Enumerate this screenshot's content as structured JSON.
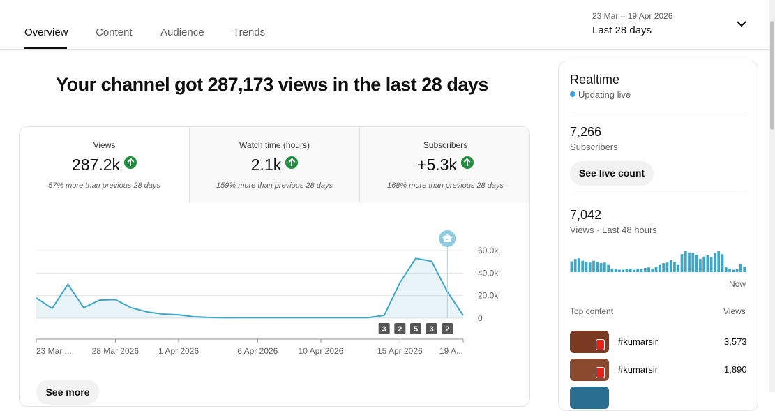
{
  "tabs": [
    "Overview",
    "Content",
    "Audience",
    "Trends"
  ],
  "date_range": {
    "dates": "23 Mar – 19 Apr 2026",
    "label": "Last 28 days"
  },
  "headline": "Your channel got 287,173 views in the last 28 days",
  "metrics": [
    {
      "label": "Views",
      "value": "287.2k",
      "note": "57% more than previous 28 days"
    },
    {
      "label": "Watch time (hours)",
      "value": "2.1k",
      "note": "159% more than previous 28 days"
    },
    {
      "label": "Subscribers",
      "value": "+5.3k",
      "note": "168% more than previous 28 days"
    }
  ],
  "views_chart": {
    "type": "line",
    "x": [
      "23 Mar ...",
      null,
      null,
      null,
      null,
      "28 Mar 2026",
      null,
      null,
      null,
      "1 Apr 2026",
      null,
      null,
      null,
      null,
      "6 Apr 2026",
      null,
      null,
      null,
      "10 Apr 2026",
      null,
      null,
      null,
      null,
      "15 Apr 2026",
      null,
      null,
      null,
      "19 A..."
    ],
    "values": [
      18000,
      8700,
      30000,
      9300,
      16000,
      16500,
      9300,
      5600,
      3700,
      3000,
      1200,
      600,
      400,
      500,
      500,
      500,
      500,
      500,
      500,
      500,
      500,
      500,
      2500,
      31500,
      53000,
      50500,
      23500,
      2500
    ],
    "uploads": [
      null,
      null,
      null,
      null,
      null,
      null,
      null,
      null,
      null,
      null,
      null,
      null,
      null,
      null,
      null,
      null,
      null,
      null,
      null,
      null,
      null,
      null,
      3,
      2,
      5,
      3,
      2,
      null
    ],
    "color": "#3ea6c8",
    "ylim": [
      0,
      60000
    ],
    "yticks": [
      0,
      {
        "value": 20000,
        "label": "20.0k"
      },
      {
        "value": 40000,
        "label": "40.0k"
      },
      {
        "value": 60000,
        "label": "60.0k"
      }
    ],
    "grid": true
  },
  "see_more": "See more",
  "realtime": {
    "title": "Realtime",
    "status": "Updating live",
    "subscribers": {
      "value": "7,266",
      "label": "Subscribers"
    },
    "button": "See live count",
    "views": {
      "value": "7,042",
      "label": "Views · Last 48 hours"
    },
    "bar_chart": {
      "type": "bar",
      "color": "#3ea6c8",
      "values": [
        180,
        220,
        230,
        190,
        170,
        160,
        190,
        170,
        150,
        160,
        120,
        60,
        50,
        40,
        40,
        50,
        60,
        40,
        60,
        50,
        70,
        80,
        60,
        90,
        120,
        150,
        160,
        200,
        170,
        120,
        300,
        350,
        330,
        320,
        290,
        220,
        260,
        280,
        250,
        320,
        350,
        300,
        80,
        60,
        40,
        50,
        140,
        90
      ],
      "end_label": "Now"
    },
    "top_content": {
      "title": "Top content",
      "column": "Views",
      "items": [
        {
          "title": "#kumarsir",
          "views": "3,573"
        },
        {
          "title": "#kumarsir",
          "views": "1,890"
        }
      ]
    }
  }
}
